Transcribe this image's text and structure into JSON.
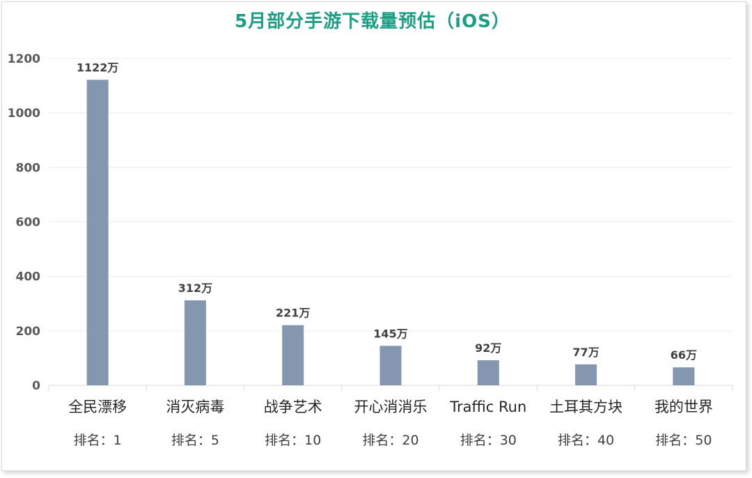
{
  "chart_data": {
    "type": "bar",
    "title": "5月部分手游下载量预估（iOS）",
    "categories": [
      "全民漂移",
      "消灭病毒",
      "战争艺术",
      "开心消消乐",
      "Traffic Run",
      "土耳其方块",
      "我的世界"
    ],
    "ranks": [
      "排名：1",
      "排名：5",
      "排名：10",
      "排名：20",
      "排名：30",
      "排名：40",
      "排名：50"
    ],
    "values": [
      1122,
      312,
      221,
      145,
      92,
      77,
      66
    ],
    "data_labels": [
      "1122万",
      "312万",
      "221万",
      "145万",
      "92万",
      "77万",
      "66万"
    ],
    "yticks": [
      "0",
      "200",
      "400",
      "600",
      "800",
      "1000",
      "1200"
    ],
    "ylim": [
      0,
      1200
    ],
    "grid": true,
    "bar_color": "#8496b0",
    "title_color": "#1a9e84"
  }
}
